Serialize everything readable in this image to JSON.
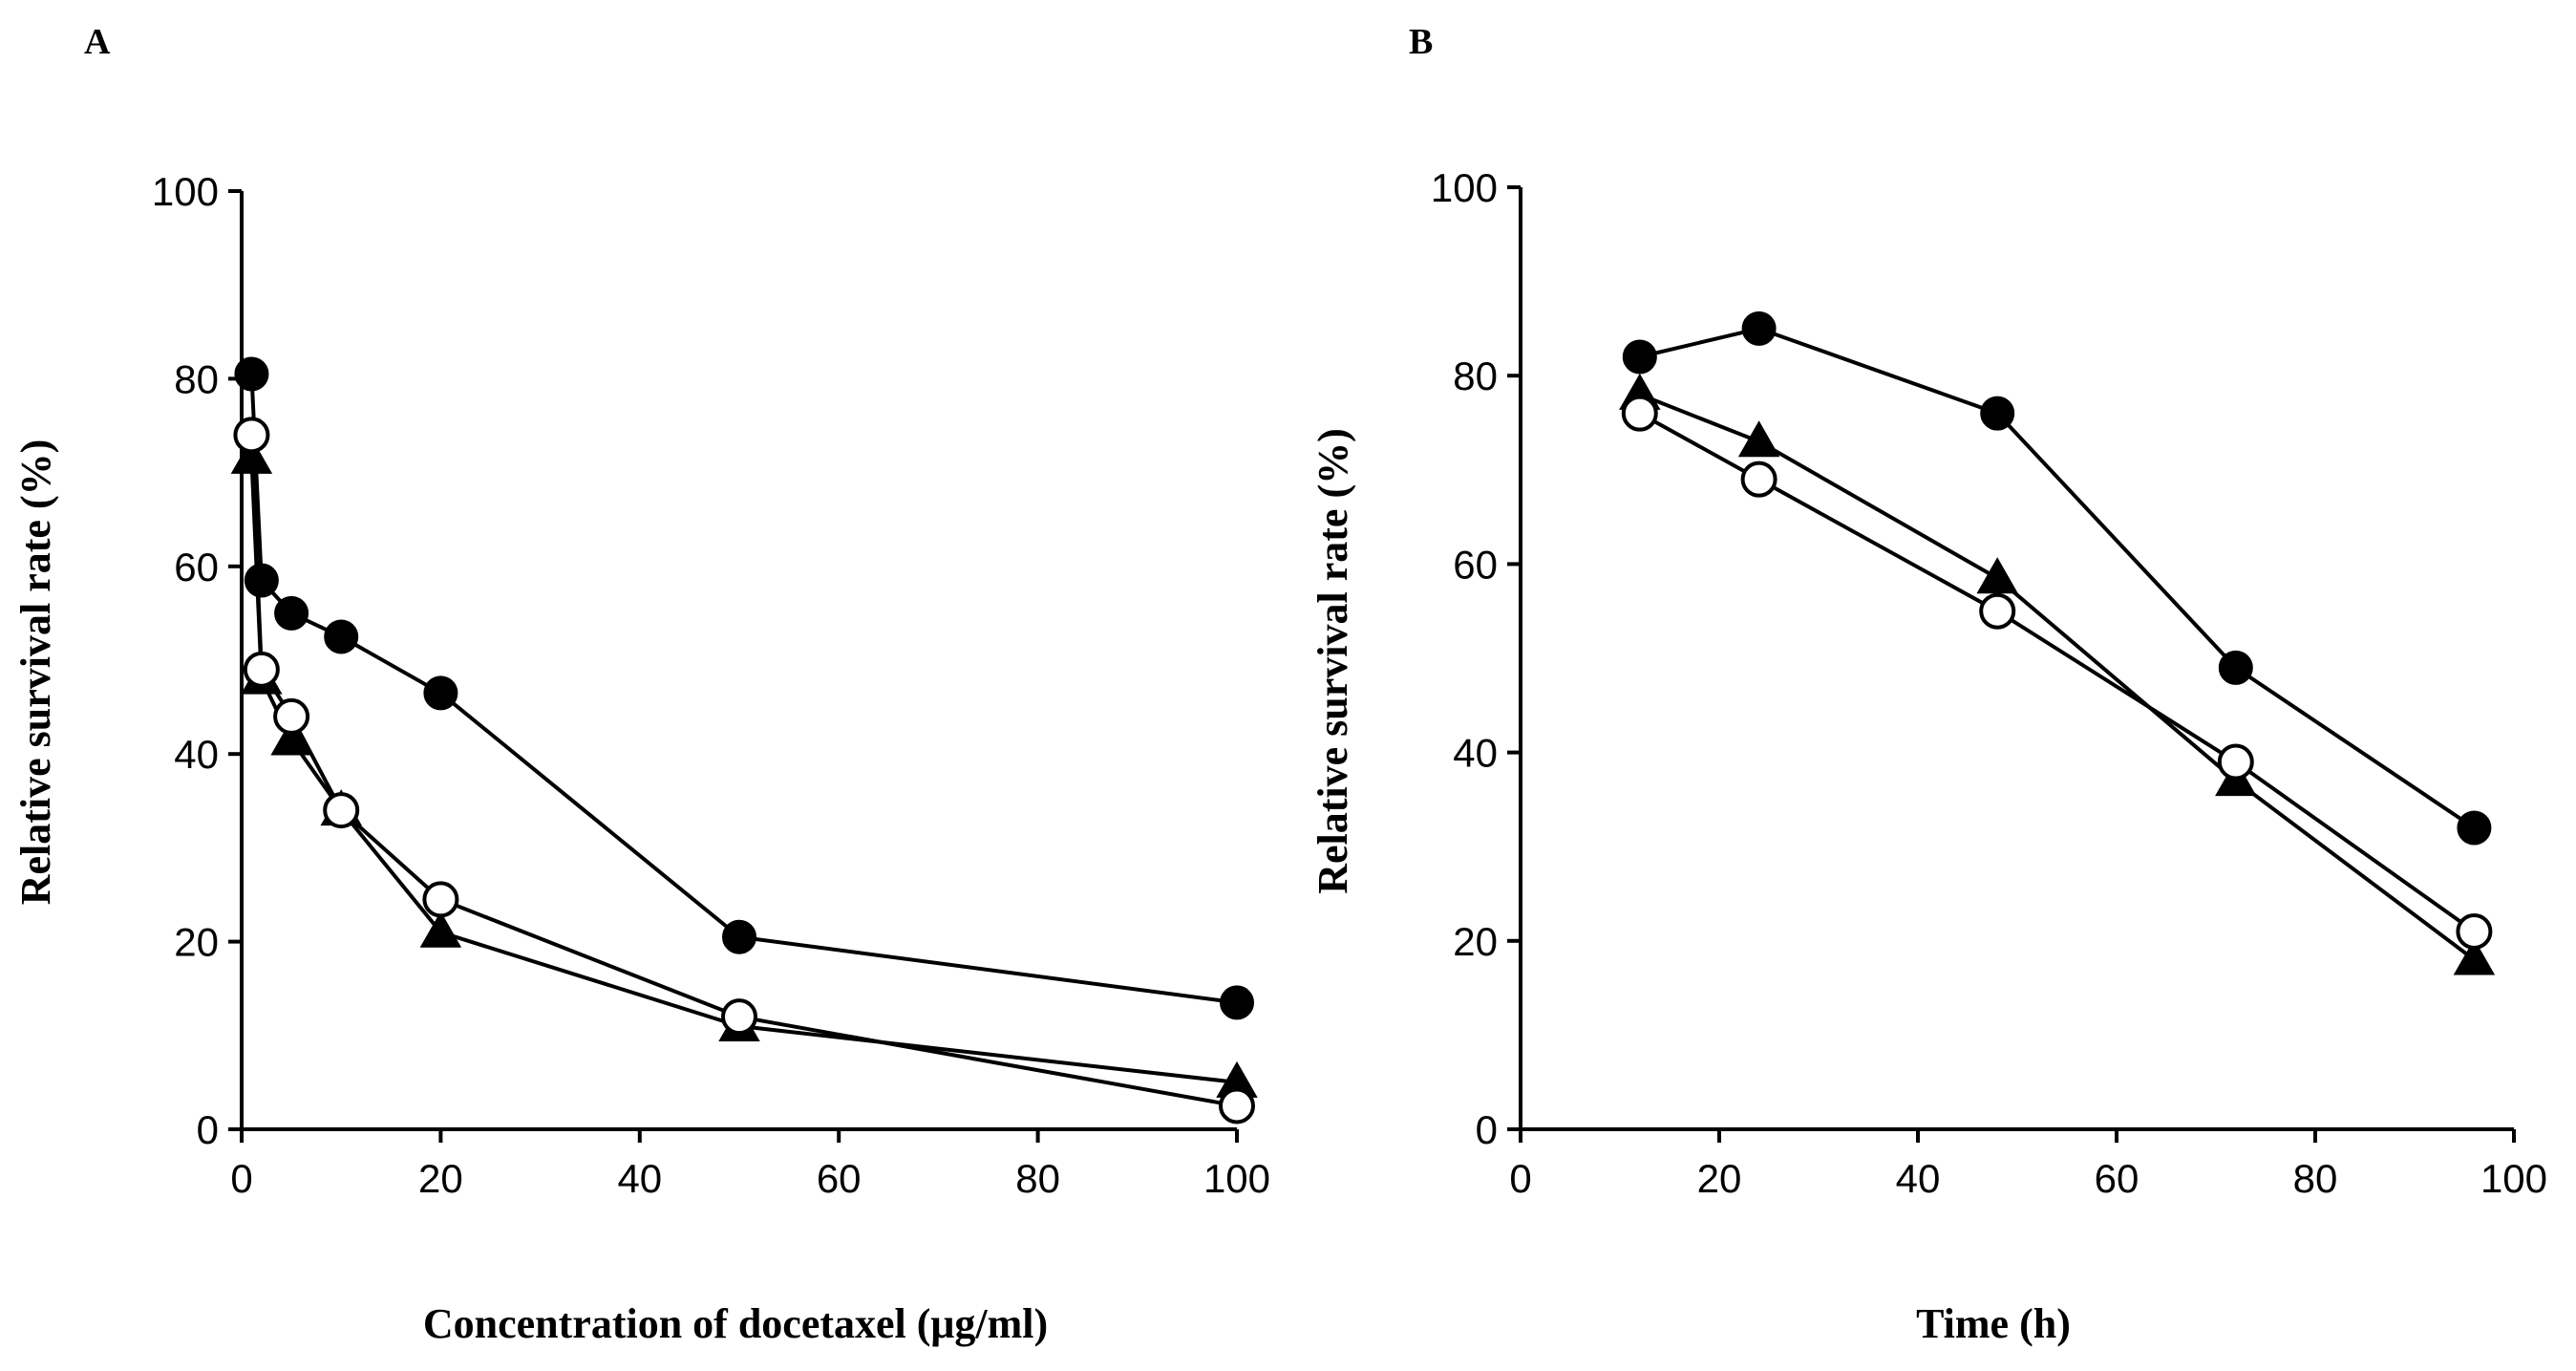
{
  "chart_data": [
    {
      "type": "line",
      "panel_label": "A",
      "xlabel": "Concentration of docetaxel (μg/ml)",
      "ylabel": "Relative survival rate (%)",
      "xlim": [
        0,
        100
      ],
      "ylim": [
        0,
        100
      ],
      "xticks": [
        0,
        20,
        40,
        60,
        80,
        100
      ],
      "yticks": [
        0,
        20,
        40,
        60,
        80,
        100
      ],
      "grid": false,
      "series": [
        {
          "marker": "filled-circle",
          "x": [
            1,
            2,
            5,
            10,
            20,
            50,
            100
          ],
          "y": [
            80.5,
            58.5,
            55,
            52.5,
            46.5,
            20.5,
            13.5
          ]
        },
        {
          "marker": "filled-triangle",
          "x": [
            1,
            2,
            5,
            10,
            20,
            50,
            100
          ],
          "y": [
            71.5,
            48,
            41.5,
            34,
            21,
            11,
            5
          ]
        },
        {
          "marker": "open-circle",
          "x": [
            1,
            2,
            5,
            10,
            20,
            50,
            100
          ],
          "y": [
            74,
            49,
            44,
            34,
            24.5,
            12,
            2.5
          ]
        }
      ]
    },
    {
      "type": "line",
      "panel_label": "B",
      "xlabel": "Time (h)",
      "ylabel": "Relative survival rate (%)",
      "xlim": [
        0,
        100
      ],
      "ylim": [
        0,
        100
      ],
      "xticks": [
        0,
        20,
        40,
        60,
        80,
        100
      ],
      "yticks": [
        0,
        20,
        40,
        60,
        80,
        100
      ],
      "grid": false,
      "series": [
        {
          "marker": "filled-circle",
          "x": [
            12,
            24,
            48,
            72,
            96
          ],
          "y": [
            82,
            85,
            76,
            49,
            32
          ]
        },
        {
          "marker": "filled-triangle",
          "x": [
            12,
            24,
            48,
            72,
            96
          ],
          "y": [
            78,
            73,
            58.5,
            37,
            18
          ]
        },
        {
          "marker": "open-circle",
          "x": [
            12,
            24,
            48,
            72,
            96
          ],
          "y": [
            76,
            69,
            55,
            39,
            21
          ]
        }
      ]
    }
  ]
}
